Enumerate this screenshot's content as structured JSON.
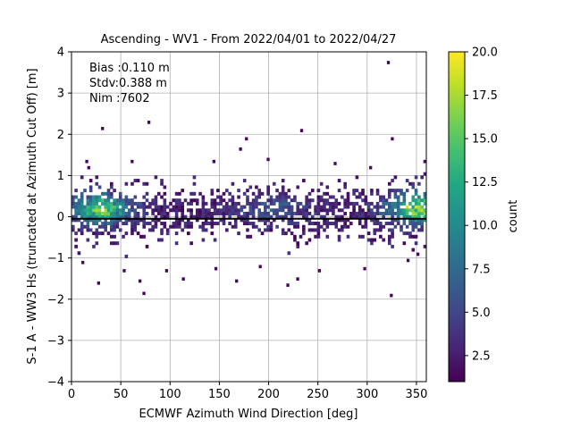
{
  "chart_data": {
    "type": "heatmap",
    "title": "Ascending - WV1 - From 2022/04/01 to 2022/04/27",
    "xlabel": "ECMWF Azimuth Wind Direction [deg]",
    "ylabel": "S-1 A - WW3 Hs (truncated at Azimuth Cut Off) [m]",
    "xlim": [
      0,
      360
    ],
    "ylim": [
      -4,
      4
    ],
    "x_ticks": [
      "0",
      "50",
      "100",
      "150",
      "200",
      "250",
      "300",
      "350"
    ],
    "y_ticks": [
      "-4",
      "-3",
      "-2",
      "-1",
      "0",
      "1",
      "2",
      "3",
      "4"
    ],
    "grid": true,
    "annotations": [
      "Bias :0.110 m",
      "Stdv:0.388 m",
      "Nim :7602"
    ],
    "colorbar": {
      "label": "count",
      "range": [
        1,
        20
      ],
      "ticks": [
        "2.5",
        "5.0",
        "7.5",
        "10.0",
        "12.5",
        "15.0",
        "17.5",
        "20.0"
      ],
      "colormap": "viridis"
    },
    "bias_line_y": -0.05,
    "outliers": [
      {
        "x": 320,
        "y": 3.7
      },
      {
        "x": 30,
        "y": 2.1
      },
      {
        "x": 77,
        "y": 2.25
      },
      {
        "x": 176,
        "y": 1.85
      },
      {
        "x": 232,
        "y": 2.05
      },
      {
        "x": 324,
        "y": 1.85
      },
      {
        "x": 14,
        "y": 1.3
      },
      {
        "x": 16,
        "y": 1.15
      },
      {
        "x": 60,
        "y": 1.3
      },
      {
        "x": 143,
        "y": 1.3
      },
      {
        "x": 170,
        "y": 1.6
      },
      {
        "x": 198,
        "y": 1.35
      },
      {
        "x": 266,
        "y": 1.25
      },
      {
        "x": 302,
        "y": 1.15
      },
      {
        "x": 357,
        "y": 1.3
      },
      {
        "x": 26,
        "y": -1.65
      },
      {
        "x": 68,
        "y": -1.6
      },
      {
        "x": 72,
        "y": -1.9
      },
      {
        "x": 112,
        "y": -1.55
      },
      {
        "x": 166,
        "y": -1.6
      },
      {
        "x": 218,
        "y": -1.7
      },
      {
        "x": 228,
        "y": -1.55
      },
      {
        "x": 323,
        "y": -1.95
      },
      {
        "x": 10,
        "y": -1.15
      },
      {
        "x": 52,
        "y": -1.35
      },
      {
        "x": 95,
        "y": -1.35
      },
      {
        "x": 145,
        "y": -1.3
      },
      {
        "x": 190,
        "y": -1.25
      },
      {
        "x": 250,
        "y": -1.35
      },
      {
        "x": 296,
        "y": -1.3
      },
      {
        "x": 340,
        "y": -1.1
      },
      {
        "x": 350,
        "y": -0.95
      }
    ]
  }
}
